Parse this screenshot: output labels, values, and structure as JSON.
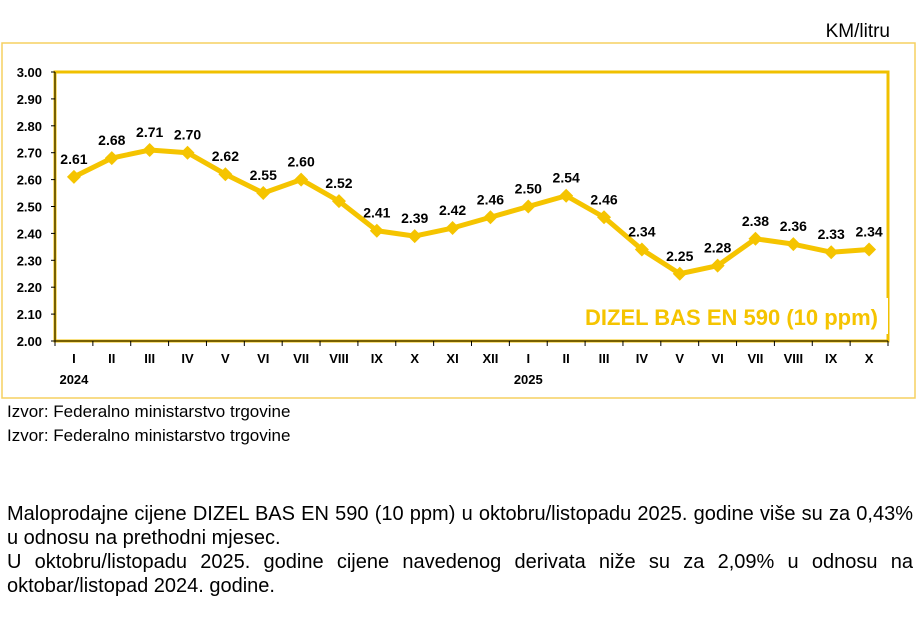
{
  "unit_label": "KM/litru",
  "source_lines": [
    "Izvor: Federalno ministarstvo trgovine",
    "Izvor: Federalno ministarstvo trgovine"
  ],
  "description": [
    "Maloprodajne cijene DIZEL BAS EN 590 (10 ppm) u oktobru/listopadu 2025. godine više su za 0,43% u odnosu na prethodni mjesec.",
    "U oktobru/listopadu 2025. godine cijene navedenog derivata niže su za 2,09% u odnosu na oktobar/listopad 2024. godine."
  ],
  "chart_data": {
    "type": "line",
    "title": "DIZEL BAS EN 590 (10 ppm)",
    "categories": [
      "I",
      "II",
      "III",
      "IV",
      "V",
      "VI",
      "VII",
      "VIII",
      "IX",
      "X",
      "XI",
      "XII",
      "I",
      "II",
      "III",
      "IV",
      "V",
      "VI",
      "VII",
      "VIII",
      "IX",
      "X"
    ],
    "year_labels": [
      {
        "index": 0,
        "label": "2024"
      },
      {
        "index": 12,
        "label": "2025"
      }
    ],
    "values": [
      2.61,
      2.68,
      2.71,
      2.7,
      2.62,
      2.55,
      2.6,
      2.52,
      2.41,
      2.39,
      2.42,
      2.46,
      2.5,
      2.54,
      2.46,
      2.34,
      2.25,
      2.28,
      2.38,
      2.36,
      2.33,
      2.34
    ],
    "ylim": [
      2.0,
      3.0
    ],
    "yticks": [
      "3.00",
      "2.90",
      "2.80",
      "2.70",
      "2.60",
      "2.50",
      "2.40",
      "2.30",
      "2.20",
      "2.10",
      "2.00"
    ],
    "ylabel": "KM/litru",
    "xlabel": "",
    "line_color": "#f5c400",
    "border_color": "#f0c000"
  }
}
